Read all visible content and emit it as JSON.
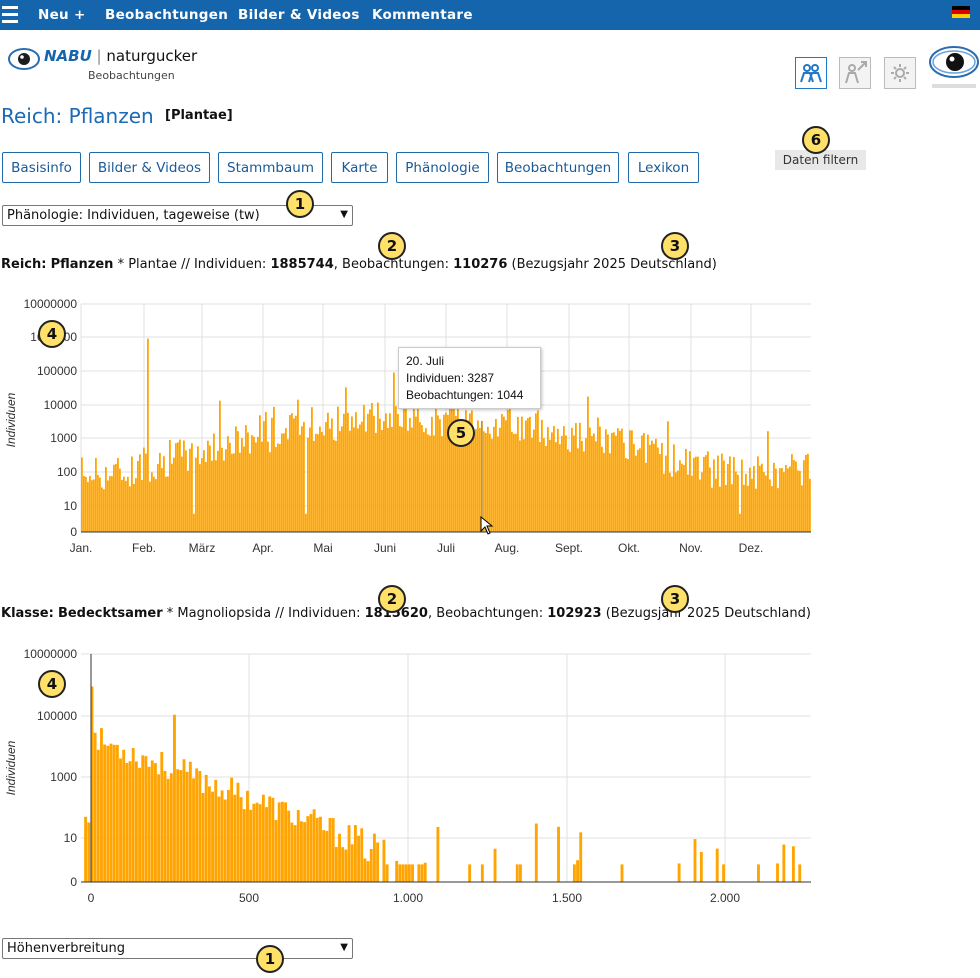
{
  "topnav": {
    "items": [
      "Neu +",
      "Beobachtungen",
      "Bilder & Videos",
      "Kommentare"
    ]
  },
  "brand": {
    "nabu": "NABU",
    "name": "naturgucker",
    "sub": "Beobachtungen"
  },
  "page": {
    "title": "Reich: Pflanzen",
    "scientific": "[Plantae]"
  },
  "tabs": [
    "Basisinfo",
    "Bilder & Videos",
    "Stammbaum",
    "Karte",
    "Phänologie",
    "Beobachtungen",
    "Lexikon"
  ],
  "filter_button": "Daten filtern",
  "select1": "Phänologie: Individuen, tageweise (tw)",
  "select2": "Höhenverbreitung",
  "chart1_header": {
    "rank": "Reich:",
    "name": "Pflanzen",
    "star": "*",
    "sci": "Plantae // Individuen:",
    "individuals": "1885744",
    "obs_label": ", Beobachtungen:",
    "observations": "110276",
    "ref": "(Bezugsjahr 2025 Deutschland)"
  },
  "chart2_header": {
    "rank": "Klasse:",
    "name": "Bedecktsamer",
    "star": "*",
    "sci": "Magnoliopsida // Individuen:",
    "individuals": "1815620",
    "obs_label": ", Beobachtungen:",
    "observations": "102923",
    "ref": "(Bezugsjahr 2025 Deutschland)"
  },
  "tooltip": {
    "date": "20. Juli",
    "ind": "Individuen: 3287",
    "obs": "Beobachtungen: 1044"
  },
  "markers": [
    "1",
    "2",
    "3",
    "4",
    "5",
    "6"
  ],
  "colors": {
    "bar": "#ffa400",
    "accent": "#1565ad",
    "highlight": "#c9952a"
  },
  "chart_data": [
    {
      "type": "bar",
      "scale": "log",
      "ylabel": "Individuen",
      "y_ticks": [
        "10000000",
        "1000000",
        "100000",
        "10000",
        "1000",
        "100",
        "10",
        "0"
      ],
      "x_ticks": [
        "Jan.",
        "Feb.",
        "März",
        "Apr.",
        "Mai",
        "Juni",
        "Juli",
        "Aug.",
        "Sept.",
        "Okt.",
        "Nov.",
        "Dez."
      ],
      "x_range": [
        1,
        365
      ],
      "highlight": {
        "day": 201,
        "label": "20. Juli",
        "individuals": 3287,
        "observations": 1044
      },
      "peaks": [
        {
          "day": 34,
          "individuals": 900000
        },
        {
          "day": 157,
          "individuals": 90000
        },
        {
          "day": 201,
          "individuals": 3287
        }
      ]
    },
    {
      "type": "bar",
      "scale": "log",
      "ylabel": "Individuen",
      "y_ticks": [
        "10000000",
        "100000",
        "1000",
        "10",
        "0"
      ],
      "x_ticks": [
        "0",
        "500",
        "1.000",
        "1.500",
        "2.000"
      ],
      "x_range": [
        -30,
        2270
      ],
      "peaks": [
        {
          "x": 0,
          "individuals": 900000
        },
        {
          "x": 260,
          "individuals": 110000
        }
      ]
    }
  ]
}
